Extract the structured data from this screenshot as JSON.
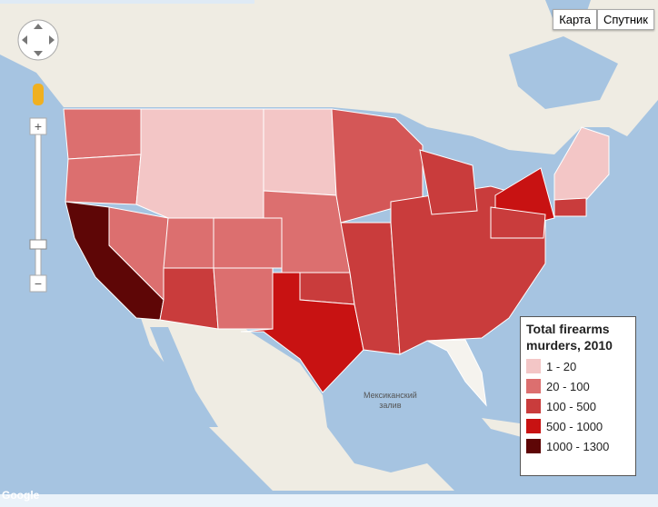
{
  "map_type": {
    "map": "Карта",
    "satellite": "Спутник"
  },
  "legend": {
    "title": "Total firearms murders, 2010",
    "items": [
      {
        "label": "1 - 20",
        "color": "#f3c6c6"
      },
      {
        "label": "20 - 100",
        "color": "#dc6f6f"
      },
      {
        "label": "100 - 500",
        "color": "#c93c3c"
      },
      {
        "label": "500 - 1000",
        "color": "#c81212"
      },
      {
        "label": "1000 - 1300",
        "color": "#5e0606"
      }
    ]
  },
  "water_label": [
    "Мексиканский",
    "залив"
  ],
  "attribution": "Google"
}
